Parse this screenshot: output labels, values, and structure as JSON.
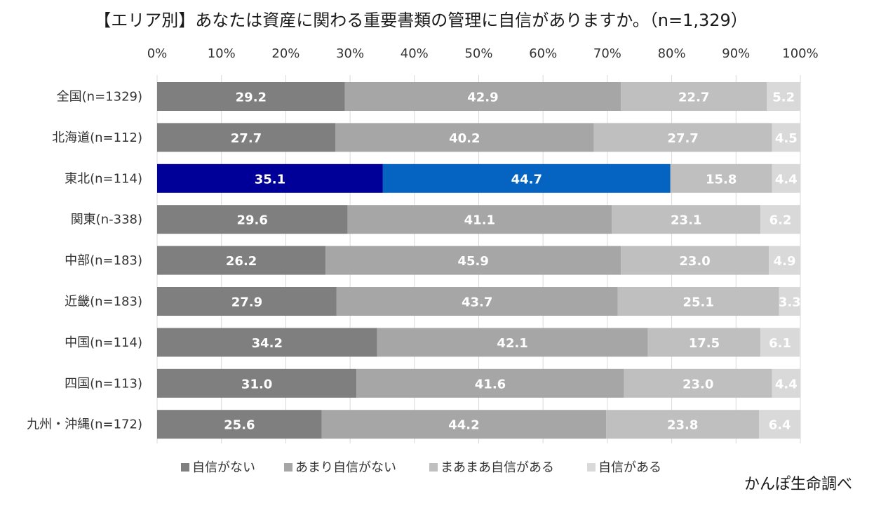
{
  "chart_data": {
    "type": "bar",
    "orientation": "horizontal",
    "stacked": true,
    "title": "【エリア別】あなたは資産に関わる重要書類の管理に自信がありますか。（n=1,329）",
    "x_ticks": [
      "0%",
      "10%",
      "20%",
      "30%",
      "40%",
      "50%",
      "60%",
      "70%",
      "80%",
      "90%",
      "100%"
    ],
    "xlim": [
      0,
      100
    ],
    "grid": true,
    "categories": [
      "全国(n=1329)",
      "北海道(n=112)",
      "東北(n=114)",
      "関東(n-338)",
      "中部(n=183)",
      "近畿(n=183)",
      "中国(n=114)",
      "四国(n=113)",
      "九州・沖縄(n=172)"
    ],
    "category_values_display": [
      [
        "29.2",
        "42.9",
        "22.7",
        "5.2"
      ],
      [
        "27.7",
        "40.2",
        "27.7",
        "4.5"
      ],
      [
        "35.1",
        "44.7",
        "15.8",
        "4.4"
      ],
      [
        "29.6",
        "41.1",
        "23.1",
        "6.2"
      ],
      [
        "26.2",
        "45.9",
        "23.0",
        "4.9"
      ],
      [
        "27.9",
        "43.7",
        "25.1",
        "3.3"
      ],
      [
        "34.2",
        "42.1",
        "17.5",
        "6.1"
      ],
      [
        "31.0",
        "41.6",
        "23.0",
        "4.4"
      ],
      [
        "25.6",
        "44.2",
        "23.8",
        "6.4"
      ]
    ],
    "series": [
      {
        "name": "自信がない",
        "color": "#7f7f7f",
        "values": [
          29.2,
          27.7,
          35.1,
          29.6,
          26.2,
          27.9,
          34.2,
          31.0,
          25.6
        ]
      },
      {
        "name": "あまり自信がない",
        "color": "#a6a6a6",
        "values": [
          42.9,
          40.2,
          44.7,
          41.1,
          45.9,
          43.7,
          42.1,
          41.6,
          44.2
        ]
      },
      {
        "name": "まあまあ自信がある",
        "color": "#bfbfbf",
        "values": [
          22.7,
          27.7,
          15.8,
          23.1,
          23.0,
          25.1,
          17.5,
          23.0,
          23.8
        ]
      },
      {
        "name": "自信がある",
        "color": "#d9d9d9",
        "values": [
          5.2,
          4.5,
          4.4,
          6.2,
          4.9,
          3.3,
          6.1,
          4.4,
          6.4
        ]
      }
    ],
    "highlight": {
      "category_index": 2,
      "colors": [
        "#000099",
        "#0563c1",
        "#bfbfbf",
        "#d9d9d9"
      ]
    },
    "legend_position": "bottom"
  },
  "source_note": "かんぽ生命調べ"
}
